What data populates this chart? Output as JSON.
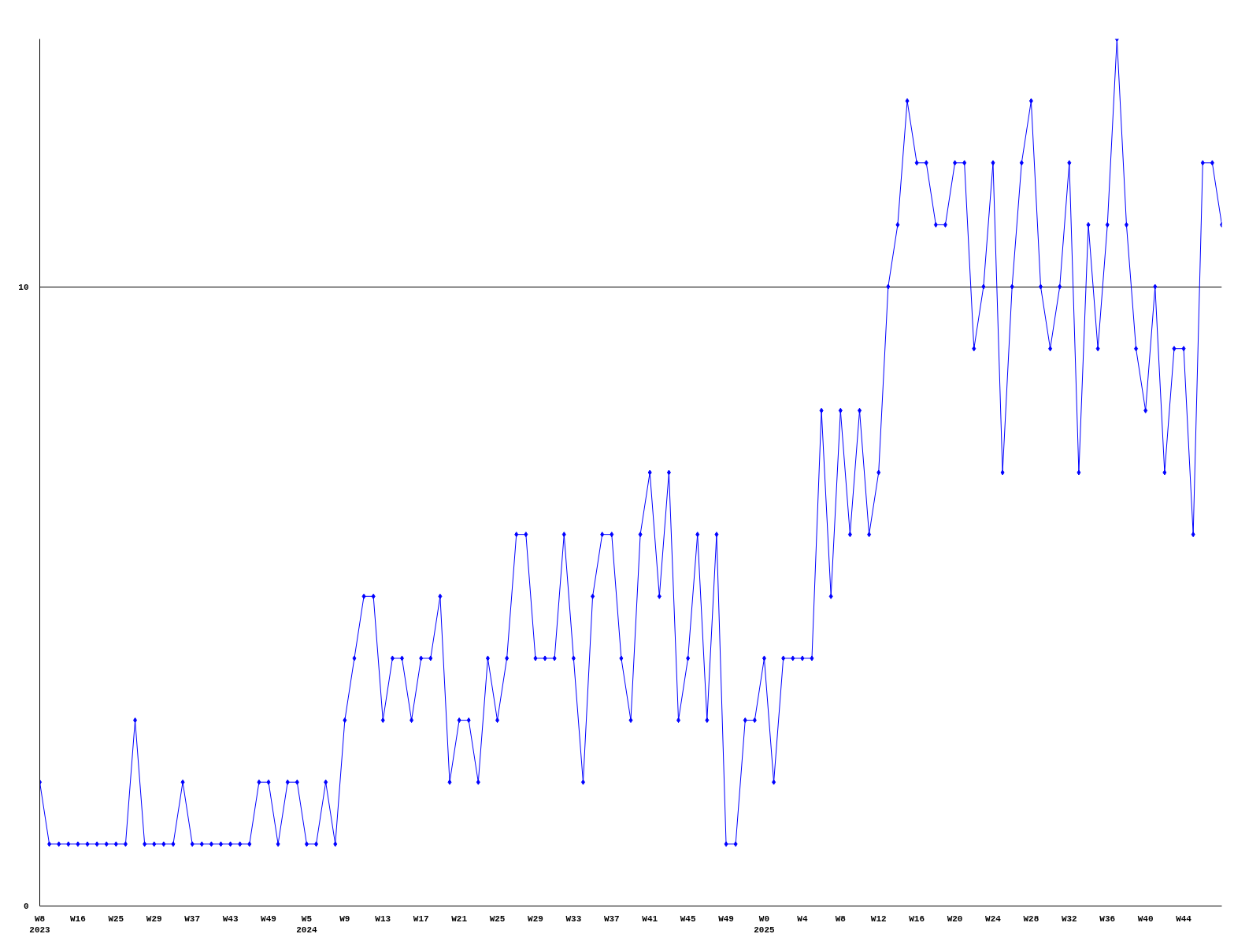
{
  "chart_data": {
    "type": "line",
    "color": "#0000ff",
    "marker": "diamond",
    "line_style": "solid",
    "grid": "y",
    "categories": [
      "W8\n2023",
      null,
      null,
      null,
      "W16",
      null,
      null,
      null,
      "W25",
      null,
      null,
      null,
      "W29",
      null,
      null,
      null,
      "W37",
      null,
      null,
      null,
      "W43",
      null,
      null,
      null,
      "W49",
      null,
      null,
      null,
      "W5\n2024",
      null,
      null,
      null,
      "W9",
      null,
      null,
      null,
      "W13",
      null,
      null,
      null,
      "W17",
      null,
      null,
      null,
      "W21",
      null,
      null,
      null,
      "W25",
      null,
      null,
      null,
      "W29",
      null,
      null,
      null,
      "W33",
      null,
      null,
      null,
      "W37",
      null,
      null,
      null,
      "W41",
      null,
      null,
      null,
      "W45",
      null,
      null,
      null,
      "W49",
      null,
      null,
      null,
      "W0\n2025",
      null,
      null,
      null,
      "W4",
      null,
      null,
      null,
      "W8",
      null,
      null,
      null,
      "W12",
      null,
      null,
      null,
      "W16",
      null,
      null,
      null,
      "W20",
      null,
      null,
      null,
      "W24",
      null,
      null,
      null,
      "W28",
      null,
      null,
      null,
      "W32",
      null,
      null,
      null,
      "W36",
      null,
      null,
      null,
      "W40",
      null,
      null,
      null,
      "W44",
      null,
      null,
      null,
      null
    ],
    "values": [
      2,
      1,
      1,
      1,
      1,
      1,
      1,
      1,
      1,
      1,
      3,
      1,
      1,
      1,
      1,
      2,
      1,
      1,
      1,
      1,
      1,
      1,
      1,
      2,
      2,
      1,
      2,
      2,
      1,
      1,
      2,
      1,
      3,
      4,
      5,
      5,
      3,
      4,
      4,
      3,
      4,
      4,
      5,
      2,
      3,
      3,
      2,
      4,
      3,
      4,
      6,
      6,
      4,
      4,
      4,
      6,
      4,
      2,
      5,
      6,
      6,
      4,
      3,
      6,
      7,
      5,
      7,
      3,
      4,
      6,
      3,
      6,
      1,
      1,
      3,
      3,
      4,
      2,
      4,
      4,
      4,
      4,
      8,
      5,
      8,
      6,
      8,
      6,
      7,
      10,
      11,
      13,
      12,
      12,
      11,
      11,
      12,
      12,
      9,
      10,
      12,
      7,
      10,
      12,
      13,
      10,
      9,
      10,
      12,
      7,
      11,
      9,
      11,
      14,
      11,
      9,
      8,
      10,
      7,
      9,
      9,
      6,
      12,
      12,
      11
    ],
    "ylim": [
      0,
      14
    ],
    "yticks": [
      0,
      10
    ]
  }
}
